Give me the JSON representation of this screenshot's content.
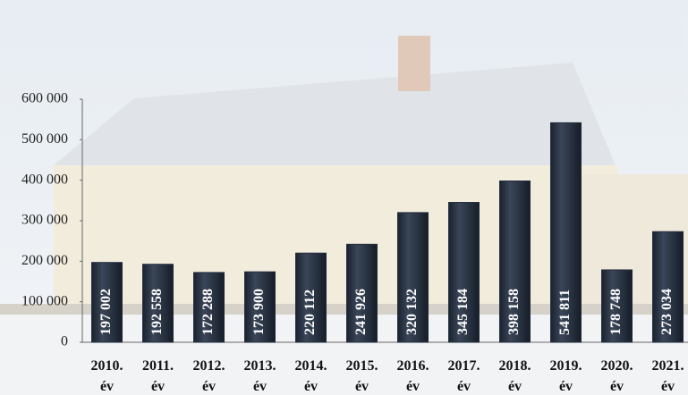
{
  "chart_data": {
    "type": "bar",
    "categories": [
      "2010. év",
      "2011. év",
      "2012. év",
      "2013. év",
      "2014. év",
      "2015. év",
      "2016. év",
      "2017. év",
      "2018. év",
      "2019. év",
      "2020. év",
      "2021. év"
    ],
    "values": [
      197002,
      192558,
      172288,
      173900,
      220112,
      241926,
      320132,
      345184,
      398158,
      541811,
      178748,
      273034
    ],
    "value_labels": [
      "197 002",
      "192 558",
      "172 288",
      "173 900",
      "220 112",
      "241 926",
      "320 132",
      "345 184",
      "398 158",
      "541 811",
      "178 748",
      "273 034"
    ],
    "color": "#232d3d",
    "ylim": [
      0,
      600000
    ],
    "yticks": [
      0,
      {
        "value": 100000,
        "label": "100 000"
      },
      {
        "value": 200000,
        "label": "200 000"
      },
      {
        "value": 300000,
        "label": "300 000"
      },
      {
        "value": 400000,
        "label": "400 000"
      },
      {
        "value": 500000,
        "label": "500 000"
      },
      {
        "value": 600000,
        "label": "600 000"
      }
    ],
    "grid": false
  }
}
